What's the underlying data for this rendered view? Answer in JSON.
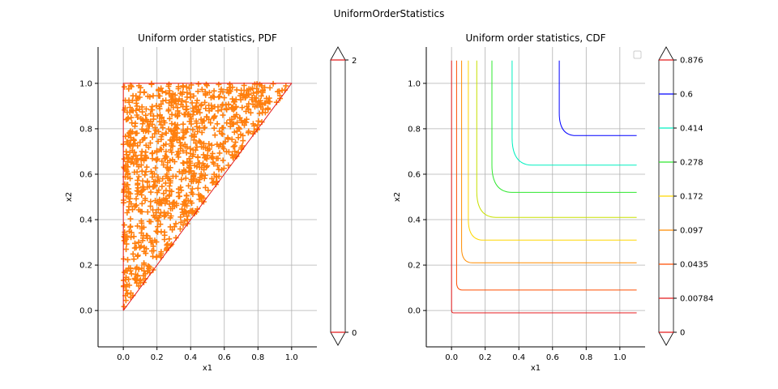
{
  "figure": {
    "suptitle": "UniformOrderStatistics"
  },
  "chart_data": [
    {
      "type": "scatter",
      "title": "Uniform order statistics, PDF",
      "xlabel": "x1",
      "ylabel": "x2",
      "xlim": [
        -0.15,
        1.15
      ],
      "ylim": [
        -0.16,
        1.16
      ],
      "xticks": [
        "0.0",
        "0.2",
        "0.4",
        "0.6",
        "0.8",
        "1.0"
      ],
      "yticks": [
        "0.0",
        "0.2",
        "0.4",
        "0.6",
        "0.8",
        "1.0"
      ],
      "grid": true,
      "sample": {
        "marker": "+",
        "color": "#ff7f0e",
        "count": 1000,
        "support": "0 <= x1 <= x2 <= 1"
      },
      "contour": {
        "levels": [
          0,
          2
        ],
        "color": "#e41a1c",
        "boundary": [
          [
            0,
            0
          ],
          [
            0,
            1
          ],
          [
            1,
            1
          ],
          [
            0,
            0
          ]
        ]
      },
      "colorbar": {
        "ticks": [
          "0",
          "2"
        ],
        "extend": "both",
        "colors": [
          "#e41a1c",
          "#e41a1c"
        ]
      }
    },
    {
      "type": "line",
      "title": "Uniform order statistics, CDF",
      "xlabel": "x1",
      "ylabel": "x2",
      "xlim": [
        -0.15,
        1.15
      ],
      "ylim": [
        -0.16,
        1.16
      ],
      "xticks": [
        "0.0",
        "0.2",
        "0.4",
        "0.6",
        "0.8",
        "1.0"
      ],
      "yticks": [
        "0.0",
        "0.2",
        "0.4",
        "0.6",
        "0.8",
        "1.0"
      ],
      "grid": true,
      "legend": "top-right (empty)",
      "series": [
        {
          "level": 0.00784,
          "color": "#e41a1c",
          "corner": [
            0.0,
            -0.01
          ]
        },
        {
          "level": 0.0435,
          "color": "#ff4d00",
          "corner": [
            0.03,
            0.09
          ]
        },
        {
          "level": 0.097,
          "color": "#ff8c00",
          "corner": [
            0.06,
            0.21
          ]
        },
        {
          "level": 0.172,
          "color": "#ffd700",
          "corner": [
            0.1,
            0.31
          ]
        },
        {
          "level": 0.278,
          "color": "#c8e000",
          "corner": [
            0.15,
            0.41
          ]
        },
        {
          "level": 0.414,
          "color": "#2fe82f",
          "corner": [
            0.24,
            0.52
          ]
        },
        {
          "level": 0.6,
          "color": "#00f0c0",
          "corner": [
            0.36,
            0.64
          ]
        },
        {
          "level": 0.876,
          "color": "#0000ff",
          "corner": [
            0.64,
            0.77
          ]
        }
      ],
      "colorbar": {
        "ticks": [
          "0",
          "0.00784",
          "0.0435",
          "0.097",
          "0.172",
          "0.278",
          "0.414",
          "0.6",
          "0.876"
        ],
        "colors": [
          "#e41a1c",
          "#e41a1c",
          "#ff4d00",
          "#ff8c00",
          "#ffd700",
          "#2fe82f",
          "#00f0c0",
          "#0000ff",
          "#e41a1c"
        ],
        "extend": "both"
      }
    }
  ]
}
